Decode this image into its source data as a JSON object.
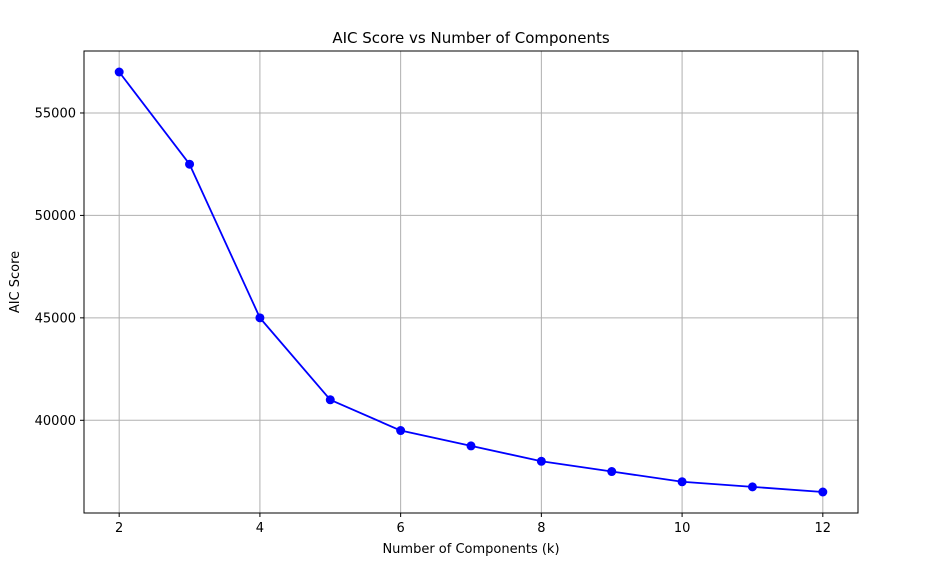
{
  "chart_data": {
    "type": "line",
    "title": "AIC Score vs Number of Components",
    "xlabel": "Number of Components (k)",
    "ylabel": "AIC Score",
    "x": [
      2,
      3,
      4,
      5,
      6,
      7,
      8,
      9,
      10,
      11,
      12
    ],
    "series": [
      {
        "values": [
          57000,
          52500,
          45000,
          41000,
          39500,
          38750,
          38000,
          37500,
          37000,
          36750,
          36500
        ],
        "color": "#0000ff",
        "marker": "circle"
      }
    ],
    "xticks": [
      2,
      4,
      6,
      8,
      10,
      12
    ],
    "xtick_labels": [
      "2",
      "4",
      "6",
      "8",
      "10",
      "12"
    ],
    "yticks": [
      40000,
      45000,
      50000,
      55000
    ],
    "ytick_labels": [
      "40000",
      "45000",
      "50000",
      "55000"
    ],
    "xlim": [
      1.5,
      12.5
    ],
    "ylim": [
      35475,
      58025
    ],
    "grid": true
  }
}
